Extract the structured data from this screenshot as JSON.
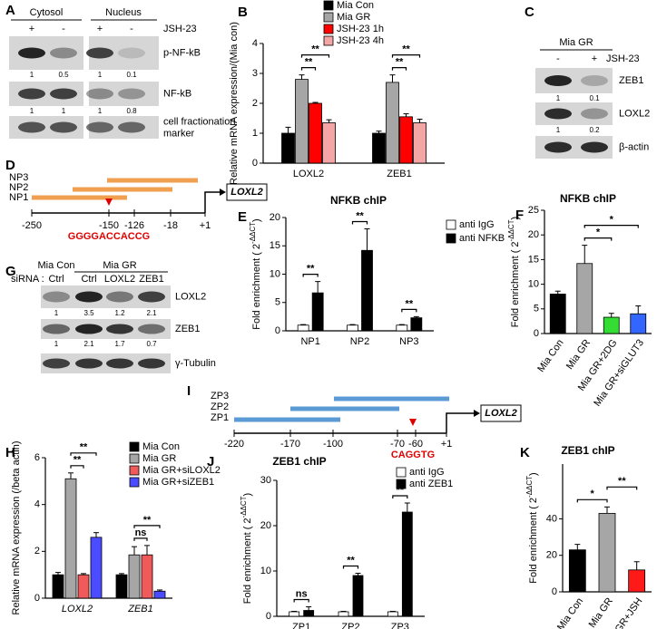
{
  "panel_labels": [
    "A",
    "B",
    "C",
    "D",
    "E",
    "F",
    "G",
    "H",
    "I",
    "J",
    "K"
  ],
  "blot_a": {
    "groups": [
      "Cytosol",
      "Nucleus"
    ],
    "treatment": "JSH-23",
    "lanes": [
      "+",
      "-",
      "+",
      "-"
    ],
    "rows": [
      {
        "label": "p-NF-kB",
        "quant": [
          "1",
          "0.5",
          "1",
          "0.1"
        ]
      },
      {
        "label": "NF-kB",
        "quant": [
          "1",
          "1",
          "1",
          "0.8"
        ]
      },
      {
        "label_lines": [
          "cell fractionation",
          "marker"
        ]
      }
    ]
  },
  "blot_c": {
    "group": "Mia GR",
    "treatment": "JSH-23",
    "lanes": [
      "-",
      "+"
    ],
    "rows": [
      {
        "label": "ZEB1",
        "quant": [
          "1",
          "0.1"
        ]
      },
      {
        "label": "LOXL2",
        "quant": [
          "1",
          "0.2"
        ]
      },
      {
        "label": "β-actin"
      }
    ]
  },
  "blot_g": {
    "groups": [
      "Mia Con",
      "Mia GR"
    ],
    "lane_title": "siRNA :",
    "lanes": [
      "Ctrl",
      "Ctrl",
      "LOXL2",
      "ZEB1"
    ],
    "rows": [
      {
        "label": "LOXL2",
        "quant": [
          "1",
          "3.5",
          "1.2",
          "2.1"
        ]
      },
      {
        "label": "ZEB1",
        "quant": [
          "1",
          "2.1",
          "1.7",
          "0.7"
        ]
      },
      {
        "label": "γ-Tubulin"
      }
    ]
  },
  "diagram_d": {
    "primers": [
      "NP3",
      "NP2",
      "NP1"
    ],
    "positions": [
      "-250",
      "-150",
      "-126",
      "-18",
      "+1"
    ],
    "site": "GGGGACCACCG",
    "gene": "LOXL2"
  },
  "diagram_i": {
    "primers": [
      "ZP3",
      "ZP2",
      "ZP1"
    ],
    "positions": [
      "-220",
      "-170",
      "-100",
      "-70",
      "-60",
      "+1"
    ],
    "site": "CAGGTG",
    "gene": "LOXL2"
  },
  "chart_data": [
    {
      "type": "bar",
      "y_label": "Relative mRNA expression/(Mia con)",
      "categories": [
        "LOXL2",
        "ZEB1"
      ],
      "series": [
        {
          "name": "Mia Con",
          "color": "#000000",
          "values": [
            1.0,
            1.0
          ],
          "errors": [
            0.2,
            0.07
          ]
        },
        {
          "name": "Mia GR",
          "color": "#a6a6a6",
          "values": [
            2.8,
            2.7
          ],
          "errors": [
            0.15,
            0.25
          ]
        },
        {
          "name": "JSH-23 1h",
          "color": "#ff0000",
          "values": [
            2.0,
            1.55
          ],
          "errors": [
            0.03,
            0.1
          ]
        },
        {
          "name": "JSH-23 4h",
          "color": "#f4a6a6",
          "values": [
            1.35,
            1.35
          ],
          "errors": [
            0.1,
            0.12
          ]
        }
      ],
      "ylim": [
        0,
        4
      ],
      "yticks": [
        0,
        1,
        2,
        3,
        4
      ],
      "brackets": [
        {
          "label": "**",
          "from": [
            0,
            1
          ],
          "to": [
            0,
            2
          ]
        },
        {
          "label": "**",
          "from": [
            0,
            1
          ],
          "to": [
            0,
            3
          ]
        },
        {
          "label": "**",
          "from": [
            1,
            1
          ],
          "to": [
            1,
            2
          ]
        },
        {
          "label": "**",
          "from": [
            1,
            1
          ],
          "to": [
            1,
            3
          ]
        }
      ]
    },
    {
      "type": "bar",
      "title": "NFKB chIP",
      "y_label": "Fold enrichment ( 2",
      "y_label_sup": "-ΔΔCT",
      "y_label_end": ")",
      "categories": [
        "NP1",
        "NP2",
        "NP3"
      ],
      "series": [
        {
          "name": "anti IgG",
          "color": "#ffffff",
          "values": [
            1,
            1,
            1
          ],
          "errors": [
            0.1,
            0.1,
            0.1
          ]
        },
        {
          "name": "anti NFKB",
          "color": "#000000",
          "values": [
            6.7,
            14.2,
            2.3
          ],
          "errors": [
            2.0,
            3.8,
            0.2
          ]
        }
      ],
      "ylim": [
        0,
        20
      ],
      "yticks": [
        0,
        5,
        10,
        15,
        20
      ],
      "brackets": [
        {
          "label": "**",
          "from": [
            0,
            0
          ],
          "to": [
            0,
            1
          ]
        },
        {
          "label": "**",
          "from": [
            1,
            0
          ],
          "to": [
            1,
            1
          ]
        },
        {
          "label": "**",
          "from": [
            2,
            0
          ],
          "to": [
            2,
            1
          ]
        }
      ]
    },
    {
      "type": "bar",
      "title": "NFKB chIP",
      "y_label": "Fold enrichment ( 2",
      "y_label_sup": "-ΔΔCT",
      "y_label_end": ")",
      "categories": [
        "Mia Con",
        "Mia GR",
        "Mia GR+2DG",
        "Mia GR+siGLUT3"
      ],
      "series": [
        {
          "colors": [
            "#000000",
            "#a6a6a6",
            "#33dd33",
            "#3366ff"
          ],
          "values": [
            8,
            14.2,
            3.3,
            4
          ],
          "errors": [
            0.6,
            3.7,
            0.8,
            1.6
          ]
        }
      ],
      "ylim": [
        0,
        25
      ],
      "yticks": [
        0,
        5,
        10,
        15,
        20,
        25
      ],
      "brackets": [
        {
          "label": "*",
          "from": [
            1,
            0
          ],
          "to": [
            2,
            0
          ]
        },
        {
          "label": "*",
          "from": [
            1,
            0
          ],
          "to": [
            3,
            0
          ]
        }
      ]
    },
    {
      "type": "bar",
      "y_label": "Relative mRNA expression (/beta actin)",
      "categories": [
        "LOXL2",
        "ZEB1"
      ],
      "series": [
        {
          "name": "Mia Con",
          "color": "#000000",
          "values": [
            1.0,
            1.0
          ],
          "errors": [
            0.1,
            0.05
          ]
        },
        {
          "name": "Mia GR",
          "color": "#a6a6a6",
          "values": [
            5.1,
            1.85
          ],
          "errors": [
            0.25,
            0.35
          ]
        },
        {
          "name": "Mia GR+siLOXL2",
          "color": "#f05a5a",
          "values": [
            1.0,
            1.85
          ],
          "errors": [
            0.05,
            0.4
          ]
        },
        {
          "name": "Mia GR+siZEB1",
          "color": "#4b4bff",
          "values": [
            2.6,
            0.3
          ],
          "errors": [
            0.2,
            0.05
          ]
        }
      ],
      "ylim": [
        0,
        6
      ],
      "yticks": [
        0,
        2,
        4,
        6
      ],
      "brackets": [
        {
          "label": "**",
          "from": [
            0,
            1
          ],
          "to": [
            0,
            2
          ]
        },
        {
          "label": "**",
          "from": [
            0,
            1
          ],
          "to": [
            0,
            3
          ]
        },
        {
          "label": "ns",
          "from": [
            1,
            1
          ],
          "to": [
            1,
            2
          ]
        },
        {
          "label": "**",
          "from": [
            1,
            1
          ],
          "to": [
            1,
            3
          ]
        }
      ]
    },
    {
      "type": "bar",
      "title": "ZEB1 chIP",
      "y_label": "Fold enrichment ( 2",
      "y_label_sup": "-ΔΔCT",
      "y_label_end": ")",
      "categories": [
        "ZP1",
        "ZP2",
        "ZP3"
      ],
      "series": [
        {
          "name": "anti IgG",
          "color": "#ffffff",
          "values": [
            1,
            1,
            1
          ],
          "errors": [
            0.1,
            0.1,
            0.1
          ]
        },
        {
          "name": "anti ZEB1",
          "color": "#000000",
          "values": [
            1.3,
            9,
            23
          ],
          "errors": [
            0.8,
            0.5,
            2
          ]
        }
      ],
      "ylim": [
        0,
        30
      ],
      "yticks": [
        0,
        10,
        20,
        30
      ],
      "brackets": [
        {
          "label": "ns",
          "from": [
            0,
            0
          ],
          "to": [
            0,
            1
          ]
        },
        {
          "label": "**",
          "from": [
            1,
            0
          ],
          "to": [
            1,
            1
          ]
        },
        {
          "label": "**",
          "from": [
            2,
            0
          ],
          "to": [
            2,
            1
          ]
        }
      ]
    },
    {
      "type": "bar",
      "title": "ZEB1 chIP",
      "y_label": "Fold enrichment ( 2",
      "y_label_sup": "-ΔΔCT",
      "y_label_end": ")",
      "categories": [
        "Mia Con",
        "Mia GR",
        "Mia GR+JSH"
      ],
      "series": [
        {
          "colors": [
            "#000000",
            "#a6a6a6",
            "#ff1a1a"
          ],
          "values": [
            23,
            43,
            12
          ],
          "errors": [
            3,
            3.5,
            4.5
          ]
        }
      ],
      "ylim": [
        0,
        70
      ],
      "yticks": [
        0,
        20,
        40
      ],
      "brackets": [
        {
          "label": "*",
          "from": [
            0,
            0
          ],
          "to": [
            1,
            0
          ]
        },
        {
          "label": "**",
          "from": [
            1,
            0
          ],
          "to": [
            2,
            0
          ]
        }
      ]
    }
  ]
}
